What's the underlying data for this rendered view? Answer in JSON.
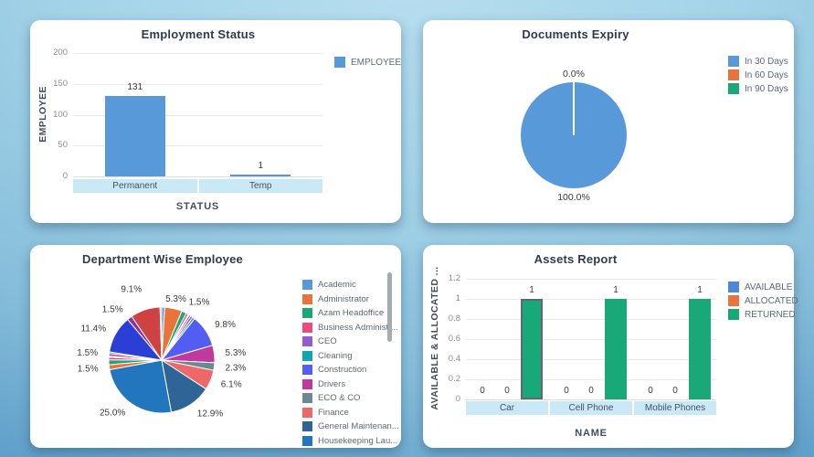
{
  "theme": {
    "background_top": "#a3d3e8",
    "background_bottom": "#3478b1",
    "card_background": "#ffffff",
    "axis_band_color": "#c9e9f6",
    "gridline_color": "#e9e9e9",
    "title_color": "#2e3c4d"
  },
  "chart_data": [
    {
      "id": "employment-status",
      "type": "bar",
      "title": "Employment Status",
      "xlabel": "STATUS",
      "ylabel": "EMPLOYEE",
      "categories": [
        "Permanent",
        "Temp"
      ],
      "series": [
        {
          "name": "EMPLOYEE",
          "color": "#5899DA",
          "values": [
            131,
            1
          ]
        }
      ],
      "ylim": [
        0,
        200
      ],
      "yticks": [
        0,
        50,
        100,
        150,
        200
      ],
      "grid": true,
      "legend_position": "right",
      "legend": [
        {
          "label": "EMPLOYEE",
          "color": "#5899DA"
        }
      ]
    },
    {
      "id": "documents-expiry",
      "type": "pie",
      "title": "Documents Expiry",
      "slices": [
        {
          "name": "In 30 Days",
          "value": 100.0,
          "label": "100.0%",
          "color": "#5899DA"
        },
        {
          "name": "In 60 Days",
          "value": 0.0,
          "label": "0.0%",
          "color": "#E8743B"
        },
        {
          "name": "In 90 Days",
          "value": 0.0,
          "color": "#19A979"
        }
      ],
      "legend_position": "right",
      "legend": [
        {
          "label": "In 30 Days",
          "color": "#5899DA"
        },
        {
          "label": "In 60 Days",
          "color": "#E8743B"
        },
        {
          "label": "In 90 Days",
          "color": "#19A979"
        }
      ]
    },
    {
      "id": "department-wise-employee",
      "type": "pie",
      "title": "Department Wise Employee",
      "slices": [
        {
          "name": "Academic",
          "value": 0.9,
          "color": "#5899DA"
        },
        {
          "name": "Administrator",
          "value": 5.3,
          "label": "5.3%",
          "color": "#E8743B"
        },
        {
          "name": "Azam Headoffice",
          "value": 1.5,
          "label": "1.5%",
          "color": "#19A979"
        },
        {
          "name": "Business Administr...",
          "value": 0.7,
          "color": "#ED4A7B"
        },
        {
          "value": 0.3,
          "color": "#DDE2E6"
        },
        {
          "name": "CEO",
          "value": 0.6,
          "color": "#945ECF"
        },
        {
          "value": 0.7,
          "color": "#BF399E"
        },
        {
          "name": "Cleaning",
          "value": 0.7,
          "color": "#13A4B4"
        },
        {
          "name": "Construction",
          "value": 9.8,
          "label": "9.8%",
          "color": "#525DF4"
        },
        {
          "name": "Drivers",
          "value": 5.3,
          "label": "5.3%",
          "color": "#BF399E"
        },
        {
          "name": "ECO & CO",
          "value": 2.3,
          "label": "2.3%",
          "color": "#6C8893"
        },
        {
          "name": "Finance",
          "value": 6.1,
          "label": "6.1%",
          "color": "#EE6868"
        },
        {
          "name": "General Maintenan...",
          "value": 12.9,
          "label": "12.9%",
          "color": "#2F6497"
        },
        {
          "name": "Housekeeping Lau...",
          "value": 25.0,
          "label": "25.0%",
          "color": "#2176BD"
        },
        {
          "value": 1.5,
          "label": "1.5%",
          "color": "#E8743B"
        },
        {
          "value": 1.5,
          "label": "1.5%",
          "color": "#19A979"
        },
        {
          "value": 0.8,
          "color": "#ED4A7B"
        },
        {
          "value": 0.3,
          "color": "#E8EAEC"
        },
        {
          "value": 0.8,
          "color": "#BF399E"
        },
        {
          "value": 0.5,
          "color": "#13A4B4"
        },
        {
          "value": 11.4,
          "label": "11.4%",
          "color": "#2B3ED6"
        },
        {
          "value": 1.5,
          "label": "1.5%",
          "color": "#8F2FA0"
        },
        {
          "value": 9.1,
          "label": "9.1%",
          "color": "#CE4342"
        },
        {
          "value": 0.5,
          "color": "#B9C2C9"
        }
      ],
      "legend_position": "right",
      "legend_scrollbar": true,
      "legend": [
        {
          "label": "Academic",
          "color": "#5899DA"
        },
        {
          "label": "Administrator",
          "color": "#E8743B"
        },
        {
          "label": "Azam Headoffice",
          "color": "#19A979"
        },
        {
          "label": "Business Administr...",
          "color": "#ED4A7B"
        },
        {
          "label": "CEO",
          "color": "#945ECF"
        },
        {
          "label": "Cleaning",
          "color": "#13A4B4"
        },
        {
          "label": "Construction",
          "color": "#525DF4"
        },
        {
          "label": "Drivers",
          "color": "#BF399E"
        },
        {
          "label": "ECO & CO",
          "color": "#6C8893"
        },
        {
          "label": "Finance",
          "color": "#EE6868"
        },
        {
          "label": "General Maintenan...",
          "color": "#2F6497"
        },
        {
          "label": "Housekeeping Lau...",
          "color": "#2176BD"
        }
      ]
    },
    {
      "id": "assets-report",
      "type": "bar",
      "title": "Assets Report",
      "xlabel": "NAME",
      "ylabel": "AVAILABLE & ALLOCATED ...",
      "categories": [
        "Car",
        "Cell Phone",
        "Mobile Phones"
      ],
      "series": [
        {
          "name": "AVAILABLE",
          "color": "#4E86D8",
          "values": [
            0,
            0,
            0
          ]
        },
        {
          "name": "ALLOCATED",
          "color": "#E8743B",
          "values": [
            0,
            0,
            0
          ]
        },
        {
          "name": "RETURNED",
          "color": "#19A979",
          "values": [
            1,
            1,
            1
          ]
        }
      ],
      "ylim": [
        0,
        1.2
      ],
      "yticks": [
        0,
        0.2,
        0.4,
        0.6,
        0.8,
        1,
        1.2
      ],
      "grid": true,
      "highlight": {
        "series_index": 2,
        "category_index": 0
      },
      "legend_position": "right",
      "legend": [
        {
          "label": "AVAILABLE",
          "color": "#4E86D8"
        },
        {
          "label": "ALLOCATED",
          "color": "#E8743B"
        },
        {
          "label": "RETURNED",
          "color": "#19A979"
        }
      ]
    }
  ]
}
